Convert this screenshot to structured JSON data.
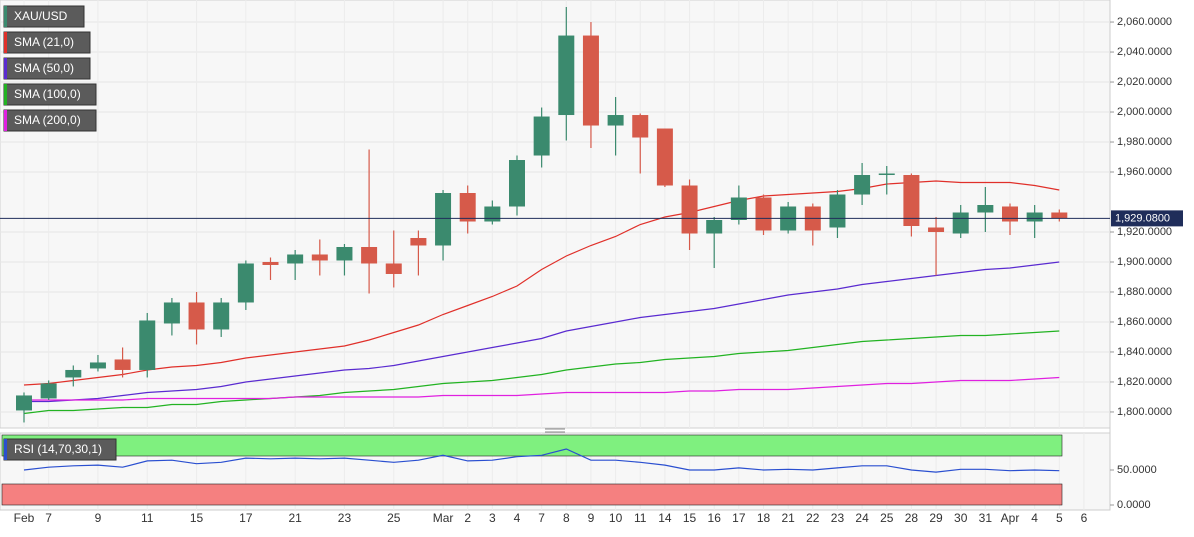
{
  "chart_data": [
    {
      "type": "candlestick",
      "name": "XAU/USD",
      "categories": [
        "Feb",
        "7",
        null,
        "9",
        null,
        "11",
        null,
        "15",
        null,
        "17",
        null,
        "21",
        null,
        "23",
        null,
        "25",
        null,
        "Mar",
        "2",
        "3",
        "4",
        "7",
        "8",
        "9",
        "10",
        "11",
        "14",
        "15",
        "16",
        "17",
        "18",
        "21",
        "22",
        "23",
        "24",
        "25",
        "28",
        "29",
        "30",
        "31",
        "Apr",
        "4",
        "5",
        "6"
      ],
      "open": [
        1801,
        1809,
        1823,
        1829,
        1835,
        1828,
        1859,
        1873,
        1855,
        1873,
        1900,
        1899,
        1905,
        1901,
        1910,
        1899,
        1916,
        1911,
        1946,
        1927,
        1937,
        1971,
        1998,
        2051,
        1991,
        1998,
        1989,
        1951,
        1919,
        1928,
        1943,
        1921,
        1937,
        1923,
        1945,
        1958,
        1958,
        1923,
        1919,
        1933,
        1937,
        1927,
        1933,
        null
      ],
      "high": [
        1813,
        1821,
        1831,
        1838,
        1843,
        1866,
        1876,
        1880,
        1876,
        1901,
        1903,
        1908,
        1915,
        1912,
        1975,
        1921,
        1921,
        1948,
        1951,
        1941,
        1971,
        2003,
        2070,
        2060,
        2010,
        1999,
        1989,
        1955,
        1930,
        1951,
        1945,
        1940,
        1939,
        1948,
        1966,
        1964,
        1959,
        1930,
        1938,
        1950,
        1939,
        1938,
        1935,
        null
      ],
      "low": [
        1793,
        1808,
        1817,
        1827,
        1823,
        1823,
        1851,
        1845,
        1850,
        1868,
        1888,
        1888,
        1891,
        1891,
        1879,
        1883,
        1891,
        1901,
        1919,
        1925,
        1931,
        1963,
        1981,
        1976,
        1971,
        1959,
        1950,
        1908,
        1896,
        1925,
        1918,
        1919,
        1911,
        1916,
        1938,
        1945,
        1917,
        1891,
        1916,
        1920,
        1918,
        1916,
        1927,
        null
      ],
      "close": [
        1811,
        1819,
        1828,
        1833,
        1828,
        1861,
        1873,
        1855,
        1873,
        1899,
        1898,
        1905,
        1901,
        1910,
        1899,
        1892,
        1911,
        1946,
        1927,
        1937,
        1968,
        1997,
        2051,
        1991,
        1998,
        1983,
        1951,
        1919,
        1928,
        1943,
        1921,
        1937,
        1921,
        1945,
        1958,
        1959,
        1924,
        1920,
        1933,
        1938,
        1927,
        1933,
        1929.08,
        null
      ],
      "up_color": "#3b8a6e",
      "down_color": "#d65a4a",
      "series": [
        {
          "name": "SMA (21,0)",
          "color": "#e0302a",
          "values": [
            1818,
            1819,
            1821,
            1823,
            1825,
            1828,
            1830,
            1831,
            1833,
            1836,
            1838,
            1840,
            1842,
            1844,
            1848,
            1853,
            1858,
            1865,
            1871,
            1877,
            1884,
            1895,
            1904,
            1911,
            1917,
            1925,
            1930,
            1933,
            1937,
            1941,
            1944,
            1945,
            1946,
            1947,
            1949,
            1952,
            1953,
            1954,
            1953,
            1953,
            1953,
            1951,
            1948,
            null
          ]
        },
        {
          "name": "SMA (50,0)",
          "color": "#5a2bd0",
          "values": [
            1807,
            1807,
            1808,
            1809,
            1811,
            1813,
            1814,
            1815,
            1817,
            1820,
            1822,
            1824,
            1826,
            1828,
            1829,
            1831,
            1834,
            1837,
            1840,
            1843,
            1846,
            1849,
            1854,
            1857,
            1860,
            1863,
            1865,
            1867,
            1869,
            1872,
            1875,
            1878,
            1880,
            1882,
            1885,
            1887,
            1889,
            1891,
            1893,
            1895,
            1896,
            1898,
            1900,
            null
          ]
        },
        {
          "name": "SMA (100,0)",
          "color": "#22b322",
          "values": [
            1799,
            1801,
            1801,
            1802,
            1803,
            1803,
            1805,
            1805,
            1807,
            1808,
            1809,
            1810,
            1811,
            1813,
            1814,
            1815,
            1817,
            1819,
            1820,
            1821,
            1823,
            1825,
            1828,
            1830,
            1832,
            1833,
            1835,
            1836,
            1837,
            1839,
            1840,
            1841,
            1843,
            1845,
            1847,
            1848,
            1849,
            1850,
            1851,
            1851,
            1852,
            1853,
            1854,
            null
          ]
        },
        {
          "name": "SMA (200,0)",
          "color": "#e020e0",
          "values": [
            1808,
            1808,
            1808,
            1808,
            1808,
            1809,
            1809,
            1809,
            1809,
            1809,
            1809,
            1810,
            1810,
            1810,
            1810,
            1810,
            1810,
            1811,
            1811,
            1811,
            1811,
            1812,
            1813,
            1813,
            1813,
            1813,
            1813,
            1814,
            1814,
            1815,
            1815,
            1815,
            1816,
            1817,
            1818,
            1819,
            1819,
            1820,
            1821,
            1821,
            1821,
            1822,
            1823,
            null
          ]
        }
      ],
      "current_price": {
        "value": 1929.08,
        "label": "1,929.0800"
      },
      "ylim": [
        1789.3,
        2074.7
      ],
      "yticks": [
        {
          "value": 1800,
          "label": "1,800.0000"
        },
        {
          "value": 1820,
          "label": "1,820.0000"
        },
        {
          "value": 1840,
          "label": "1,840.0000"
        },
        {
          "value": 1860,
          "label": "1,860.0000"
        },
        {
          "value": 1880,
          "label": "1,880.0000"
        },
        {
          "value": 1900,
          "label": "1,900.0000"
        },
        {
          "value": 1920,
          "label": "1,920.0000"
        },
        {
          "value": 1960,
          "label": "1,960.0000"
        },
        {
          "value": 1980,
          "label": "1,980.0000"
        },
        {
          "value": 2000,
          "label": "2,000.0000"
        },
        {
          "value": 2020,
          "label": "2,020.0000"
        },
        {
          "value": 2040,
          "label": "2,040.0000"
        },
        {
          "value": 2060,
          "label": "2,060.0000"
        }
      ],
      "grid": true
    },
    {
      "type": "line",
      "name": "RSI (14,70,30,1)",
      "color": "#2a4fd0",
      "values": [
        50,
        54,
        56,
        57,
        54,
        63,
        64,
        59,
        61,
        67,
        66,
        67,
        66,
        67,
        64,
        61,
        64,
        71,
        63,
        64,
        69,
        71,
        80,
        64,
        64,
        61,
        57,
        50,
        50,
        53,
        50,
        51,
        50,
        53,
        56,
        56,
        50,
        47,
        51,
        51,
        49,
        50,
        49,
        null
      ],
      "overbought": 70,
      "oversold": 30,
      "ylim": [
        0,
        100
      ],
      "yticks": [
        {
          "value": 0,
          "label": "0.0000"
        },
        {
          "value": 50,
          "label": "50.0000"
        }
      ]
    }
  ]
}
